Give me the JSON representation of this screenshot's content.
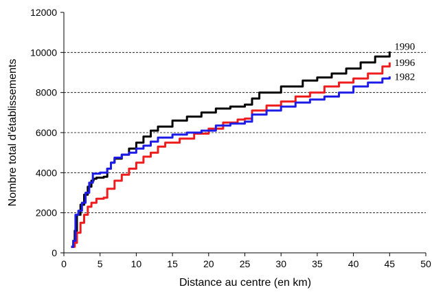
{
  "chart_data": {
    "type": "line",
    "xlabel": "Distance au centre (en km)",
    "ylabel": "Nombre total d'établissements",
    "xlim": [
      0,
      50
    ],
    "ylim": [
      0,
      12000
    ],
    "x_ticks": [
      0,
      5,
      10,
      15,
      20,
      25,
      30,
      35,
      40,
      45,
      50
    ],
    "y_ticks": [
      0,
      2000,
      4000,
      6000,
      8000,
      10000,
      12000
    ],
    "grid": "horizontal dashed at 2000, 4000, 6000, 8000, 10000",
    "legend": "labels at right end of lines",
    "series": [
      {
        "name": "1990",
        "color": "#000000",
        "points": [
          [
            1,
            300
          ],
          [
            1.3,
            600
          ],
          [
            1.5,
            1100
          ],
          [
            1.8,
            1900
          ],
          [
            2.3,
            2400
          ],
          [
            2.8,
            2900
          ],
          [
            3.3,
            3300
          ],
          [
            3.8,
            3600
          ],
          [
            4.1,
            3700
          ],
          [
            4.5,
            3750
          ],
          [
            5.5,
            3800
          ],
          [
            6,
            4200
          ],
          [
            6.5,
            4500
          ],
          [
            7,
            4700
          ],
          [
            8,
            4900
          ],
          [
            9,
            5200
          ],
          [
            10,
            5500
          ],
          [
            11,
            5800
          ],
          [
            12,
            6100
          ],
          [
            13,
            6300
          ],
          [
            15,
            6600
          ],
          [
            17,
            6800
          ],
          [
            19,
            7000
          ],
          [
            21,
            7200
          ],
          [
            23,
            7300
          ],
          [
            25,
            7400
          ],
          [
            26,
            7700
          ],
          [
            27,
            8000
          ],
          [
            30,
            8300
          ],
          [
            33,
            8600
          ],
          [
            35,
            8750
          ],
          [
            37,
            8950
          ],
          [
            39,
            9200
          ],
          [
            41,
            9500
          ],
          [
            43,
            9800
          ],
          [
            45,
            10050
          ]
        ]
      },
      {
        "name": "1996",
        "color": "#ee1c1c",
        "points": [
          [
            1,
            300
          ],
          [
            1.5,
            500
          ],
          [
            1.8,
            1000
          ],
          [
            2.3,
            1500
          ],
          [
            2.8,
            1900
          ],
          [
            3.3,
            2300
          ],
          [
            3.8,
            2500
          ],
          [
            4.5,
            2700
          ],
          [
            5.5,
            2750
          ],
          [
            6,
            3200
          ],
          [
            7,
            3600
          ],
          [
            8,
            3900
          ],
          [
            9,
            4200
          ],
          [
            10,
            4500
          ],
          [
            11,
            4800
          ],
          [
            12,
            5000
          ],
          [
            13,
            5300
          ],
          [
            14,
            5500
          ],
          [
            16,
            5700
          ],
          [
            18,
            5950
          ],
          [
            20,
            6200
          ],
          [
            22,
            6500
          ],
          [
            24,
            6650
          ],
          [
            25,
            6700
          ],
          [
            26,
            7100
          ],
          [
            28,
            7350
          ],
          [
            30,
            7550
          ],
          [
            32,
            7800
          ],
          [
            34,
            8000
          ],
          [
            36,
            8300
          ],
          [
            38,
            8500
          ],
          [
            40,
            8700
          ],
          [
            42,
            8950
          ],
          [
            44,
            9300
          ],
          [
            45,
            9500
          ]
        ]
      },
      {
        "name": "1982",
        "color": "#1c1ce6",
        "points": [
          [
            1,
            300
          ],
          [
            1.3,
            600
          ],
          [
            1.6,
            1900
          ],
          [
            2,
            2100
          ],
          [
            2.5,
            2500
          ],
          [
            3,
            3000
          ],
          [
            3.5,
            3500
          ],
          [
            4,
            3950
          ],
          [
            5,
            4000
          ],
          [
            6,
            4200
          ],
          [
            6.5,
            4500
          ],
          [
            7,
            4750
          ],
          [
            8,
            4900
          ],
          [
            9,
            5000
          ],
          [
            10,
            5200
          ],
          [
            11,
            5350
          ],
          [
            12,
            5550
          ],
          [
            13,
            5750
          ],
          [
            15,
            5900
          ],
          [
            17,
            6000
          ],
          [
            19,
            6100
          ],
          [
            21,
            6350
          ],
          [
            23,
            6450
          ],
          [
            25,
            6550
          ],
          [
            26,
            6900
          ],
          [
            28,
            7100
          ],
          [
            30,
            7300
          ],
          [
            32,
            7500
          ],
          [
            34,
            7650
          ],
          [
            36,
            7800
          ],
          [
            38,
            8000
          ],
          [
            40,
            8300
          ],
          [
            42,
            8500
          ],
          [
            44,
            8700
          ],
          [
            45,
            8800
          ]
        ]
      }
    ]
  }
}
